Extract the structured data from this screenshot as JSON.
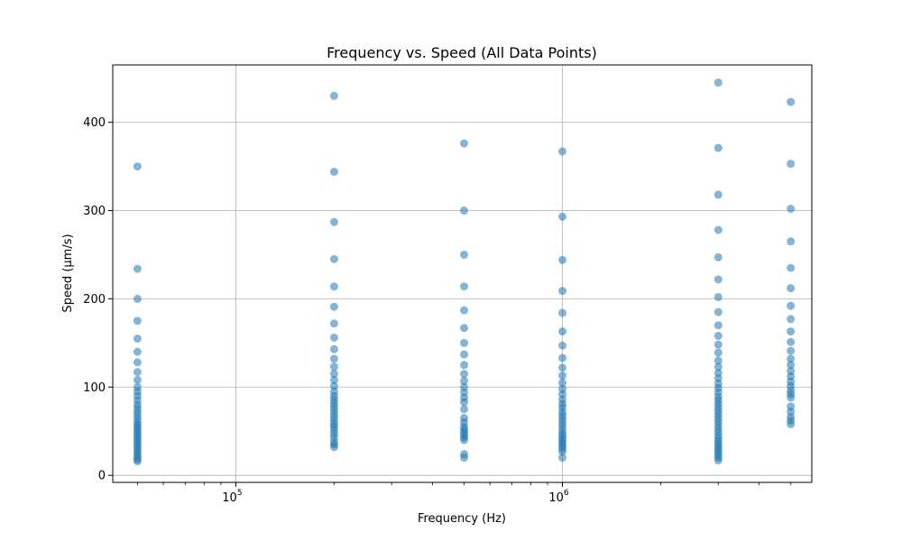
{
  "chart_data": {
    "type": "scatter",
    "title": "Frequency vs. Speed (All Data Points)",
    "xlabel": "Frequency (Hz)",
    "ylabel": "Speed (µm/s)",
    "xscale": "log",
    "xlim": [
      42000,
      5800000
    ],
    "ylim": [
      -8,
      465
    ],
    "x_tick_labels": [
      {
        "value": 100000,
        "base": "10",
        "exp": "5"
      },
      {
        "value": 1000000,
        "base": "10",
        "exp": "6"
      }
    ],
    "y_ticks": [
      0,
      100,
      200,
      300,
      400
    ],
    "grid": true,
    "legend": "none",
    "marker_color": "#1f77b4",
    "marker_alpha": 0.55,
    "series": [
      {
        "points_by_x": [
          {
            "x": 50000,
            "y": [
              350,
              234,
              200,
              175,
              155,
              140,
              128,
              117,
              108,
              100,
              95,
              90,
              85,
              80,
              76,
              72,
              68,
              64,
              60,
              57,
              54,
              51,
              48,
              45,
              42,
              39,
              36,
              33,
              30,
              27,
              24,
              21,
              18,
              16
            ]
          },
          {
            "x": 200000,
            "y": [
              430,
              344,
              287,
              245,
              214,
              191,
              172,
              156,
              143,
              132,
              123,
              115,
              108,
              101,
              95,
              90,
              86,
              82,
              78,
              74,
              70,
              66,
              62,
              58,
              55,
              51,
              47,
              43,
              38,
              35,
              32
            ]
          },
          {
            "x": 500000,
            "y": [
              376,
              300,
              250,
              214,
              187,
              167,
              150,
              137,
              125,
              115,
              107,
              100,
              94,
              88,
              83,
              75,
              65,
              60,
              55,
              52,
              49,
              46,
              43,
              40,
              24,
              20
            ]
          },
          {
            "x": 1000000,
            "y": [
              367,
              293,
              244,
              209,
              184,
              163,
              147,
              133,
              122,
              113,
              105,
              98,
              92,
              86,
              81,
              77,
              72,
              68,
              64,
              60,
              56,
              52,
              48,
              45,
              42,
              39,
              36,
              33,
              30,
              27,
              20
            ]
          },
          {
            "x": 3000000,
            "y": [
              445,
              371,
              318,
              278,
              247,
              222,
              202,
              185,
              170,
              158,
              148,
              139,
              130,
              123,
              116,
              110,
              104,
              99,
              94,
              89,
              85,
              81,
              77,
              73,
              69,
              65,
              61,
              57,
              53,
              49,
              45,
              41,
              38,
              35,
              32,
              29,
              26,
              23,
              20,
              17
            ]
          },
          {
            "x": 5000000,
            "y": [
              423,
              353,
              302,
              265,
              235,
              212,
              192,
              177,
              163,
              151,
              141,
              132,
              125,
              118,
              112,
              106,
              101,
              96,
              92,
              88,
              78,
              72,
              66,
              62,
              58
            ]
          }
        ]
      }
    ]
  }
}
